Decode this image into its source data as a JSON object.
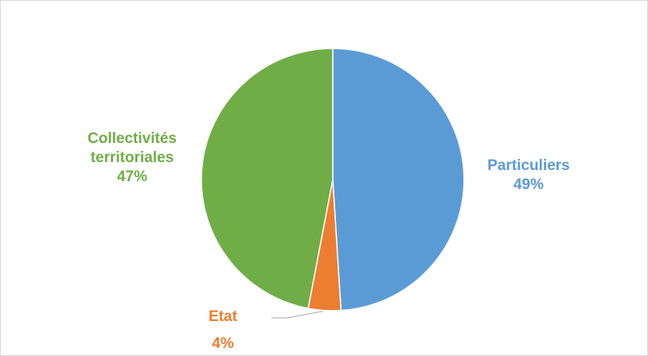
{
  "chart_data": {
    "type": "pie",
    "title": "",
    "slices": [
      {
        "label": "Particuliers",
        "value": 49,
        "display": "49%",
        "color": "#5b9bd5"
      },
      {
        "label": "Etat",
        "value": 4,
        "display": "4%",
        "color": "#ed7d31"
      },
      {
        "label": "Collectivités territoriales",
        "label_lines": [
          "Collectivités",
          "territoriales"
        ],
        "value": 47,
        "display": "47%",
        "color": "#70ad47"
      }
    ],
    "legend": "none",
    "start_angle": "12 o'clock",
    "direction": "clockwise"
  }
}
